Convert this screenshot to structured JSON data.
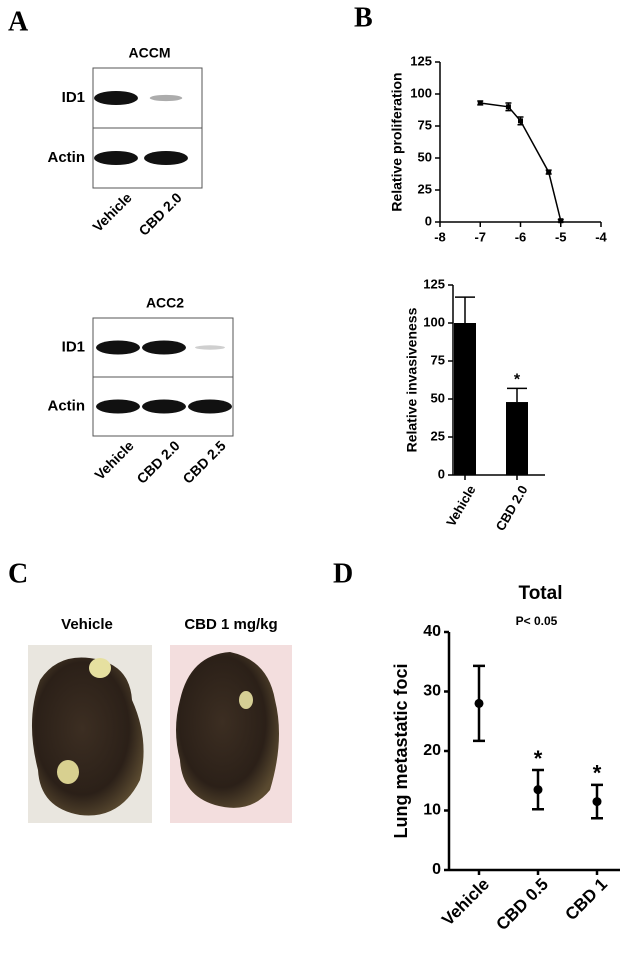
{
  "panels": [
    "A",
    "B",
    "C",
    "D"
  ],
  "blots": [
    {
      "title": "ACCM",
      "rows": [
        "ID1",
        "Actin"
      ],
      "lanes": [
        "Vehicle",
        "CBD 2.0"
      ]
    },
    {
      "title": "ACC2",
      "rows": [
        "ID1",
        "Actin"
      ],
      "lanes": [
        "Vehicle",
        "CBD 2.0",
        "CBD 2.5"
      ]
    }
  ],
  "photos": [
    "Vehicle",
    "CBD 1 mg/kg"
  ],
  "chart_data": [
    {
      "type": "line",
      "ylabel": "Relative proliferation",
      "x": [
        -7,
        -6.3,
        -6,
        -5.3,
        -5
      ],
      "values": [
        93,
        90,
        79,
        39,
        1
      ],
      "errors": [
        1.5,
        3,
        3,
        1.5,
        1
      ],
      "xlim": [
        -8,
        -4
      ],
      "xticks": [
        -8,
        -7,
        -6,
        -5,
        -4
      ],
      "ylim": [
        0,
        125
      ],
      "yticks": [
        0,
        25,
        50,
        75,
        100,
        125
      ],
      "color": "#000000"
    },
    {
      "type": "bar",
      "ylabel": "Relative invasiveness",
      "categories": [
        "Vehicle",
        "CBD 2.0"
      ],
      "values": [
        100,
        48
      ],
      "errors": [
        17,
        9
      ],
      "annotations": [
        "*"
      ],
      "ylim": [
        0,
        125
      ],
      "yticks": [
        0,
        25,
        50,
        75,
        100,
        125
      ],
      "color": "#000000"
    },
    {
      "type": "errorbar",
      "title": "Total",
      "subtitle": "P< 0.05",
      "ylabel": "Lung metastatic foci",
      "categories": [
        "Vehicle",
        "CBD 0.5",
        "CBD 1"
      ],
      "values": [
        28,
        13.5,
        11.5
      ],
      "errors": [
        6.3,
        3.3,
        2.8
      ],
      "annotations": [
        "*",
        "*"
      ],
      "ylim": [
        0,
        40
      ],
      "yticks": [
        0,
        10,
        20,
        30,
        40
      ],
      "color": "#000000"
    }
  ]
}
